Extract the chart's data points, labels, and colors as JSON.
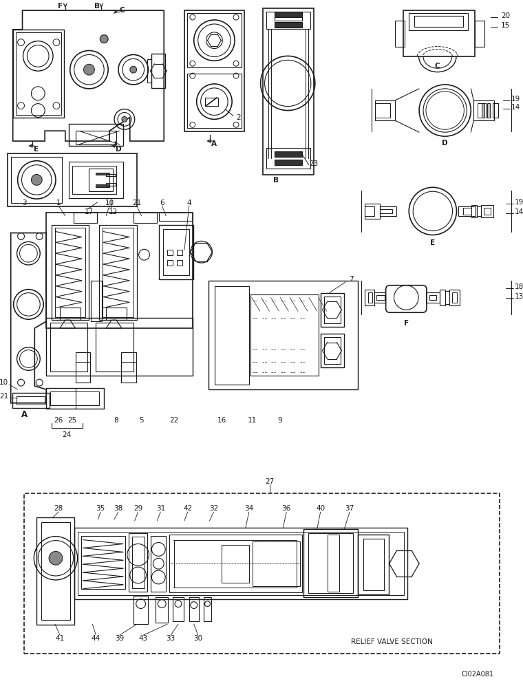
{
  "bg_color": "#ffffff",
  "lc": "#1a1a1a",
  "fig_width": 7.6,
  "fig_height": 10.0,
  "dpi": 100,
  "watermark": "CI02A081",
  "relief_valve_label": "RELIEF VALVE SECTION",
  "label_A": "A",
  "label_B": "B",
  "label_C": "C",
  "label_D": "D",
  "label_E": "E",
  "label_F": "F"
}
